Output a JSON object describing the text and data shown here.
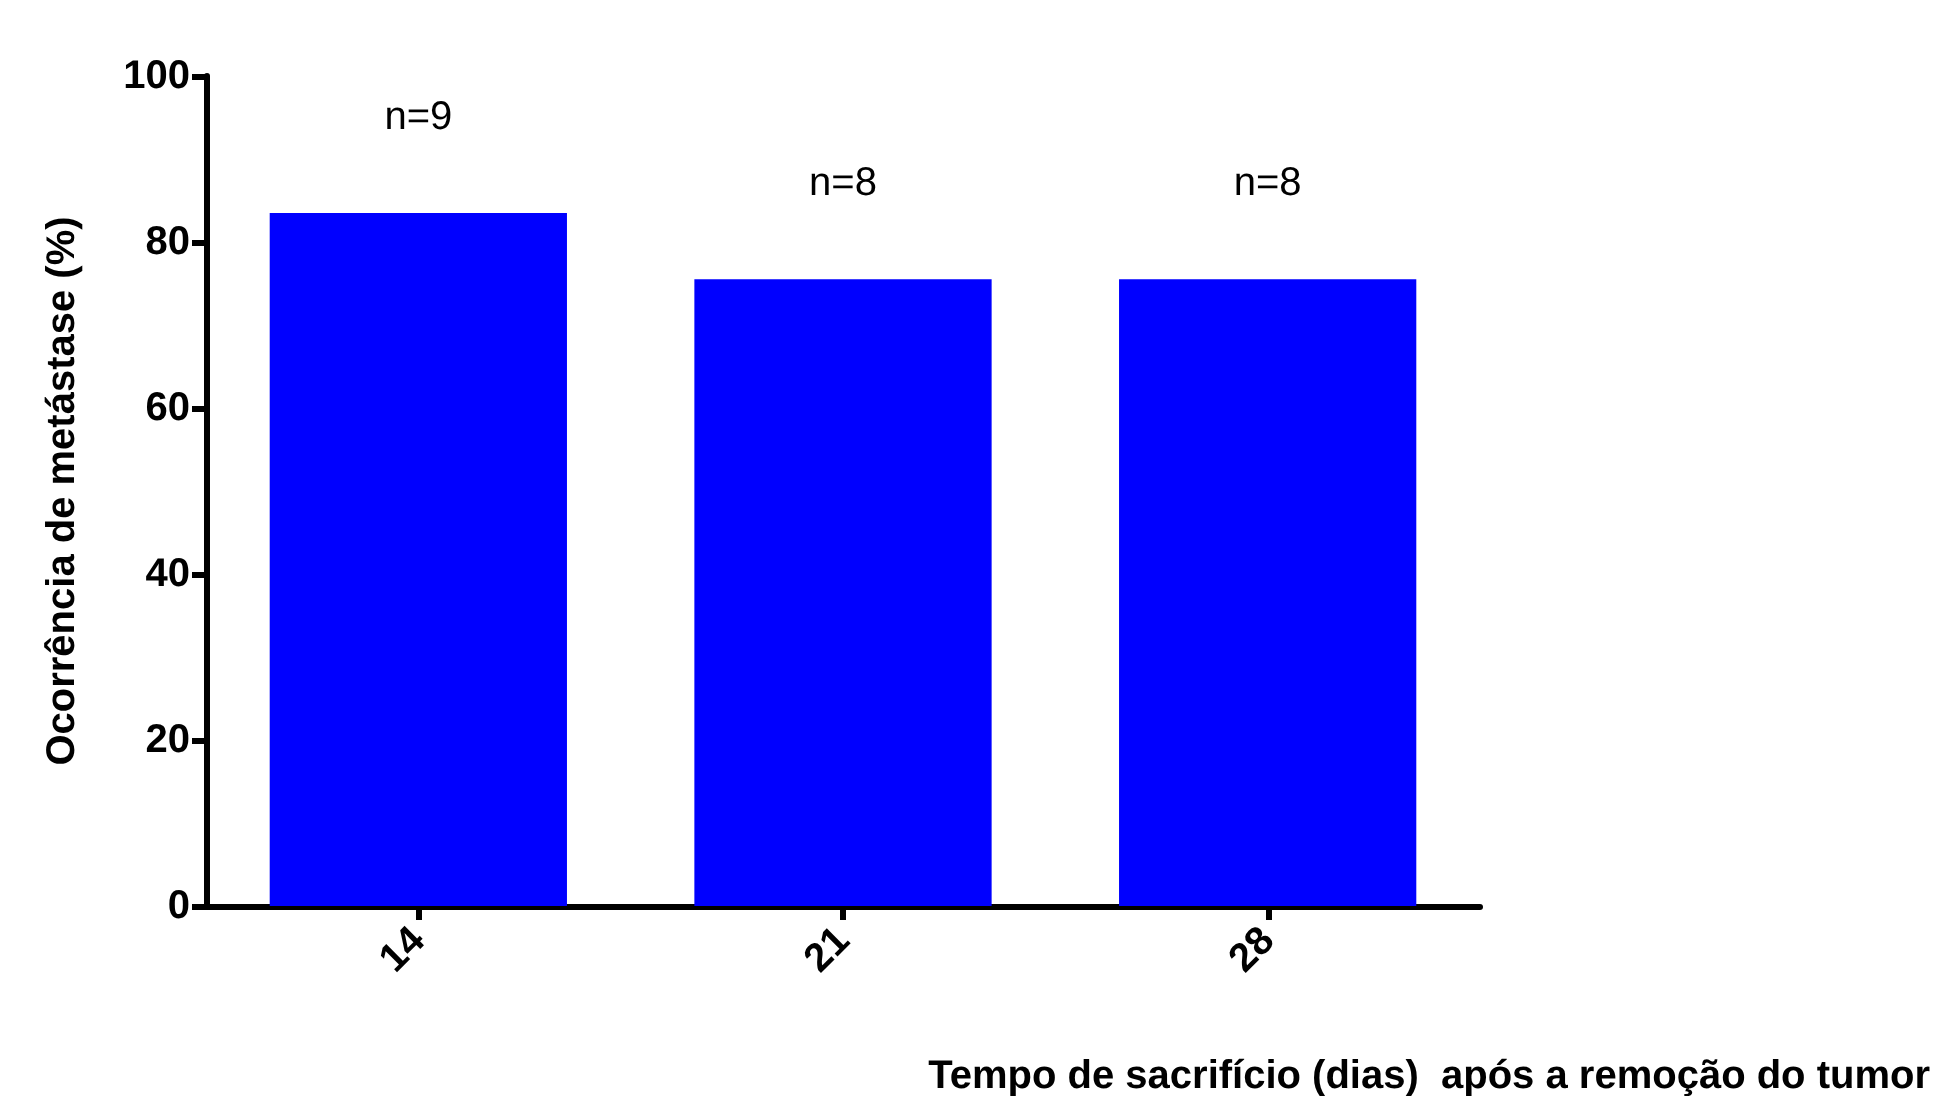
{
  "chart_data": {
    "type": "bar",
    "categories": [
      "14",
      "21",
      "28"
    ],
    "values": [
      83.5,
      75.5,
      75.5
    ],
    "color": "#0000ff",
    "ylim": [
      0,
      100
    ],
    "yticks": [
      0,
      20,
      40,
      60,
      80,
      100
    ],
    "grid": false,
    "ylabel": "Ocorrência de metástase (%)",
    "xlabel": "Tempo de sacrifício (dias)  após a remoção do tumor",
    "annotations": [
      "n=9",
      "n=8",
      "n=8"
    ]
  }
}
